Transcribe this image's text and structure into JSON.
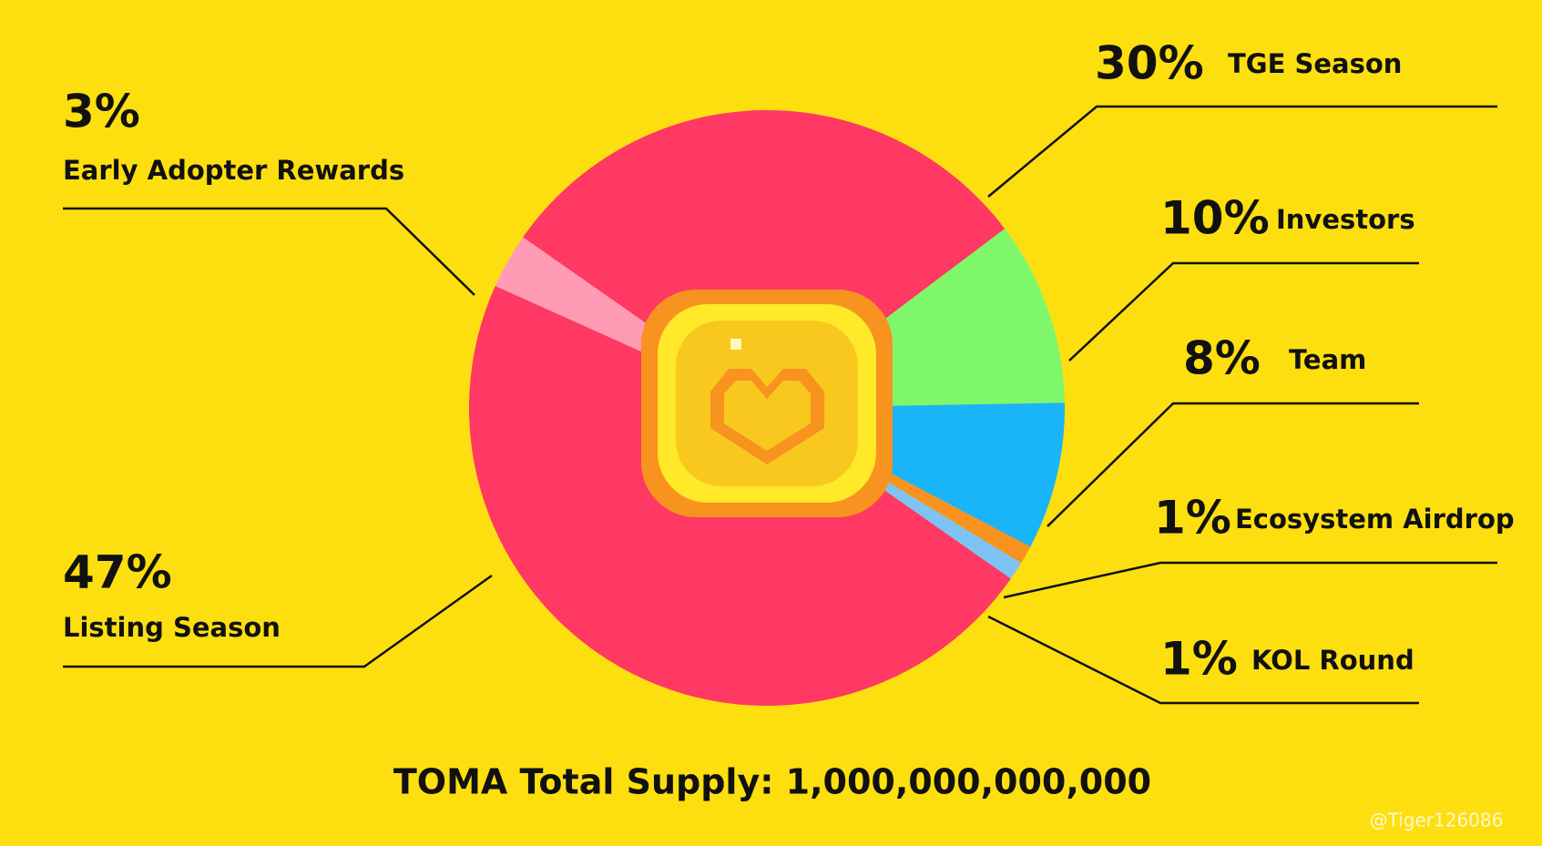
{
  "chart_data": {
    "type": "pie",
    "title": "TOMA Total Supply: 1,000,000,000,000",
    "categories": [
      "TGE Season",
      "Investors",
      "Team",
      "Ecosystem Airdrop",
      "KOL Round",
      "Listing Season",
      "Early Adopter Rewards"
    ],
    "values": [
      30,
      10,
      8,
      1,
      1,
      47,
      3
    ],
    "value_labels": [
      "30%",
      "10%",
      "8%",
      "1%",
      "1%",
      "47%",
      "3%"
    ],
    "colors": [
      "#ff3864",
      "#7ef86a",
      "#1ab4f8",
      "#f7931e",
      "#7dc4f5",
      "#ff3864",
      "#ff9bb5"
    ]
  },
  "watermark": "@Tiger126086"
}
